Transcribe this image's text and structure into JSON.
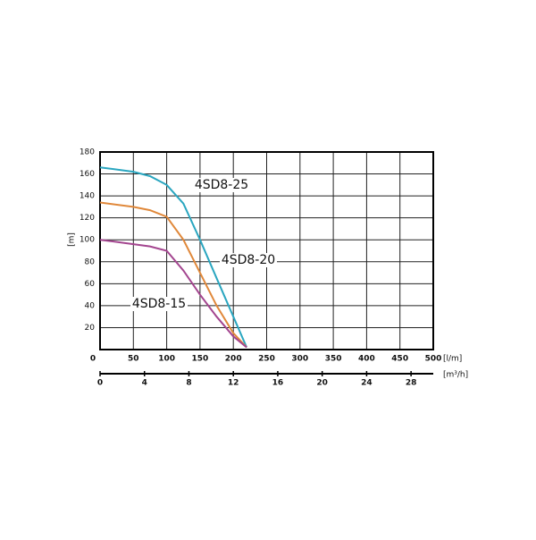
{
  "chart_data": {
    "type": "line",
    "ylabel": "[m]",
    "xlabel": "[l/m]",
    "x2label": "[m³/h]",
    "x": [
      0,
      50,
      75,
      100,
      125,
      150,
      175,
      200,
      220
    ],
    "series": [
      {
        "name": "4SD8-25",
        "color": "#2aa6c0",
        "values": [
          166,
          162,
          158,
          150,
          133,
          100,
          65,
          30,
          2
        ]
      },
      {
        "name": "4SD8-20",
        "color": "#e0883a",
        "values": [
          134,
          130,
          127,
          121,
          100,
          70,
          40,
          15,
          2
        ]
      },
      {
        "name": "4SD8-15",
        "color": "#a3458f",
        "values": [
          100,
          96,
          94,
          90,
          72,
          50,
          30,
          12,
          2
        ]
      }
    ],
    "xlim": [
      0,
      500
    ],
    "xticks": [
      0,
      50,
      100,
      150,
      200,
      250,
      300,
      350,
      400,
      450,
      500
    ],
    "ylim": [
      0,
      180
    ],
    "yticks": [
      20,
      40,
      60,
      80,
      100,
      120,
      140,
      160,
      180
    ],
    "x2lim": [
      0,
      30
    ],
    "x2ticks": [
      0,
      4,
      8,
      12,
      16,
      20,
      24,
      28
    ],
    "grid": true
  }
}
